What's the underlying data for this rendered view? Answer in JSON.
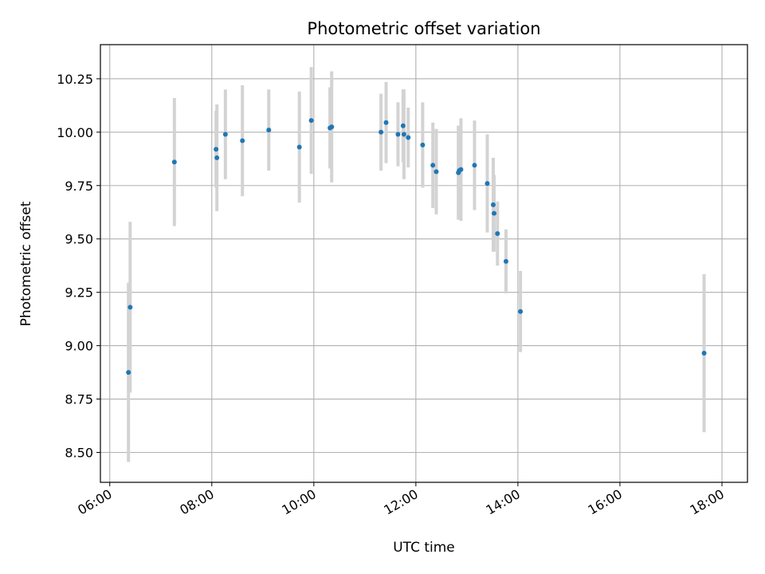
{
  "chart_data": {
    "type": "scatter",
    "title": "Photometric offset variation",
    "xlabel": "UTC time",
    "ylabel": "Photometric offset",
    "grid": true,
    "xlim": [
      "05:49",
      "18:30"
    ],
    "ylim": [
      8.36,
      10.41
    ],
    "x_ticks": [
      "06:00",
      "08:00",
      "10:00",
      "12:00",
      "14:00",
      "16:00",
      "18:00"
    ],
    "y_ticks": [
      "8.50",
      "8.75",
      "9.00",
      "9.25",
      "9.50",
      "9.75",
      "10.00",
      "10.25"
    ],
    "colors": {
      "marker": "#1f77b4",
      "errorbar": "#d3d3d3",
      "grid": "#b0b0b0"
    },
    "points": [
      {
        "x": "06:22",
        "y": 8.875,
        "err": 0.42
      },
      {
        "x": "06:24",
        "y": 9.18,
        "err": 0.4
      },
      {
        "x": "07:16",
        "y": 9.86,
        "err": 0.3
      },
      {
        "x": "08:05",
        "y": 9.92,
        "err": 0.18
      },
      {
        "x": "08:06",
        "y": 9.88,
        "err": 0.25
      },
      {
        "x": "08:16",
        "y": 9.99,
        "err": 0.21
      },
      {
        "x": "08:36",
        "y": 9.96,
        "err": 0.26
      },
      {
        "x": "09:07",
        "y": 10.01,
        "err": 0.19
      },
      {
        "x": "09:43",
        "y": 9.93,
        "err": 0.26
      },
      {
        "x": "09:57",
        "y": 10.055,
        "err": 0.25
      },
      {
        "x": "10:19",
        "y": 10.02,
        "err": 0.19
      },
      {
        "x": "10:21",
        "y": 10.025,
        "err": 0.26
      },
      {
        "x": "11:19",
        "y": 10.0,
        "err": 0.18
      },
      {
        "x": "11:25",
        "y": 10.045,
        "err": 0.19
      },
      {
        "x": "11:39",
        "y": 9.99,
        "err": 0.15
      },
      {
        "x": "11:45",
        "y": 10.03,
        "err": 0.17
      },
      {
        "x": "11:46",
        "y": 9.99,
        "err": 0.21
      },
      {
        "x": "11:51",
        "y": 9.975,
        "err": 0.14
      },
      {
        "x": "12:08",
        "y": 9.94,
        "err": 0.2
      },
      {
        "x": "12:20",
        "y": 9.845,
        "err": 0.2
      },
      {
        "x": "12:24",
        "y": 9.815,
        "err": 0.2
      },
      {
        "x": "12:50",
        "y": 9.81,
        "err": 0.22
      },
      {
        "x": "12:51",
        "y": 9.82,
        "err": 0.21
      },
      {
        "x": "12:53",
        "y": 9.825,
        "err": 0.24
      },
      {
        "x": "13:09",
        "y": 9.845,
        "err": 0.21
      },
      {
        "x": "13:24",
        "y": 9.76,
        "err": 0.23
      },
      {
        "x": "13:31",
        "y": 9.66,
        "err": 0.22
      },
      {
        "x": "13:32",
        "y": 9.62,
        "err": 0.18
      },
      {
        "x": "13:36",
        "y": 9.525,
        "err": 0.15
      },
      {
        "x": "13:46",
        "y": 9.395,
        "err": 0.15
      },
      {
        "x": "14:03",
        "y": 9.16,
        "err": 0.19
      },
      {
        "x": "17:39",
        "y": 8.965,
        "err": 0.37
      }
    ]
  }
}
